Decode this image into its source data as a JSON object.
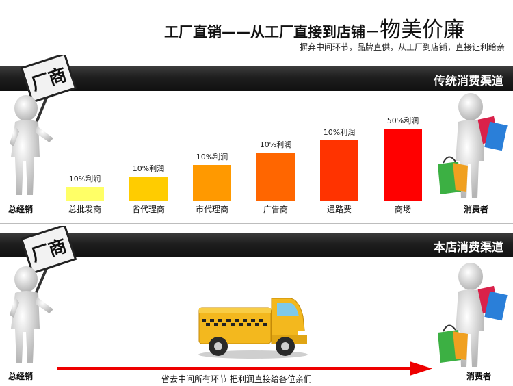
{
  "header": {
    "title_main": "工厂直销——从工厂直接到店铺－",
    "title_big": "物美价廉",
    "subtitle": "摒弃中间环节，品牌直供，从工厂到店铺，直接让利给亲"
  },
  "section_traditional": {
    "title": "传统消费渠道",
    "sign": "厂商",
    "left_label": "总经销",
    "right_label": "消费者"
  },
  "section_store": {
    "title": "本店消费渠道",
    "sign": "厂商",
    "left_label": "总经销",
    "right_label": "消费者",
    "arrow_caption": "省去中间所有环节 把利润直接给各位亲们"
  },
  "chart_data": {
    "type": "bar",
    "categories": [
      "总批发商",
      "省代理商",
      "市代理商",
      "广告商",
      "通路费",
      "商场"
    ],
    "data_labels": [
      "10%利润",
      "10%利润",
      "10%利润",
      "10%利润",
      "10%利润",
      "50%利润"
    ],
    "values": [
      20,
      35,
      52,
      70,
      88,
      105
    ],
    "colors": [
      "#ffff66",
      "#ffcc00",
      "#ff9900",
      "#ff6600",
      "#ff3300",
      "#ff0000"
    ]
  }
}
